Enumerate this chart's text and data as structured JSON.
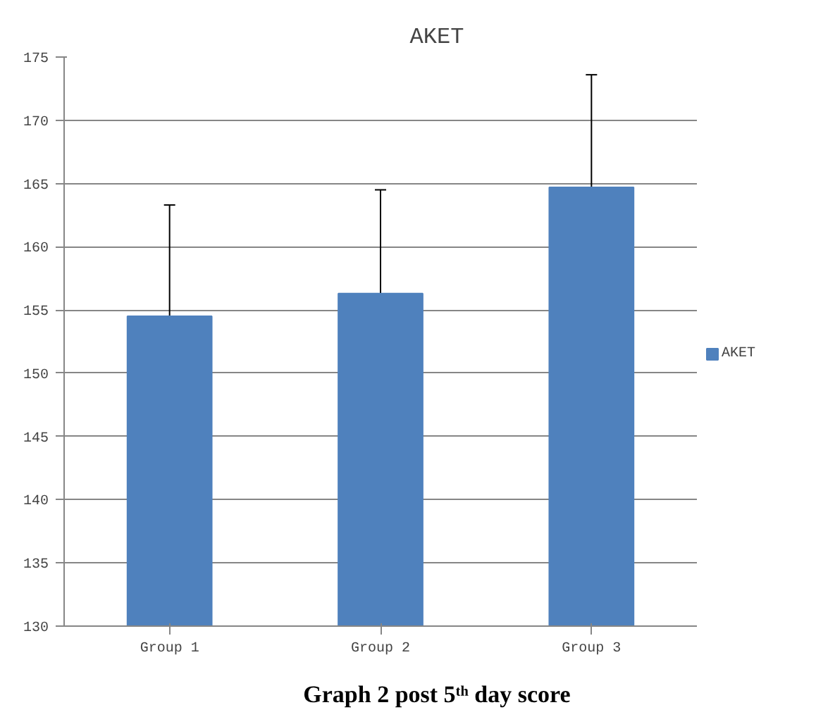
{
  "chart_data": {
    "type": "bar",
    "title": "AKET",
    "categories": [
      "Group 1",
      "Group 2",
      "Group 3"
    ],
    "series": [
      {
        "name": "AKET",
        "color": "#4f81bd",
        "values": [
          154.5,
          156.3,
          164.7
        ],
        "errors": [
          8.8,
          8.2,
          8.9
        ]
      }
    ],
    "ylim": [
      130,
      175
    ],
    "yticks": [
      130,
      135,
      140,
      145,
      150,
      155,
      160,
      165,
      170,
      175
    ],
    "grid": "y",
    "legend": "right",
    "annotations": [
      "Graph 2 post 5ᵗʰ day score"
    ]
  }
}
